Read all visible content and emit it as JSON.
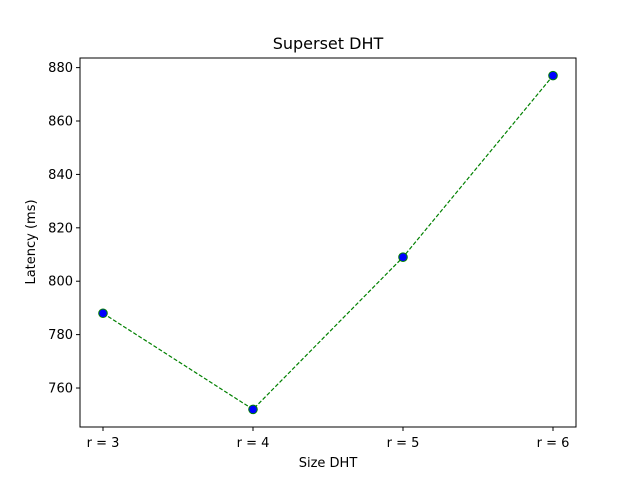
{
  "chart_data": {
    "type": "line",
    "title": "Superset DHT",
    "xlabel": "Size DHT",
    "ylabel": "Latency (ms)",
    "categories": [
      "r = 3",
      "r = 4",
      "r = 5",
      "r = 6"
    ],
    "series": [
      {
        "values": [
          788,
          752,
          809,
          877
        ]
      }
    ],
    "ylim": [
      745.4,
      883.6
    ],
    "yticks": [
      760,
      780,
      800,
      820,
      840,
      860,
      880
    ],
    "grid": false,
    "colors": {
      "line": "#008000",
      "marker_fill": "#0000ff",
      "marker_edge": "#008000"
    }
  }
}
